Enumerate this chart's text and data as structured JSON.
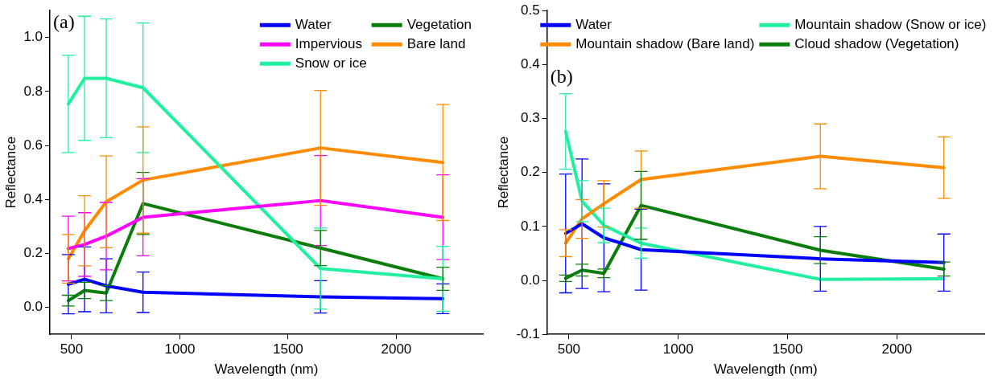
{
  "chart_data": [
    {
      "type": "line",
      "xlabel": "Wavelength (nm)",
      "ylabel": "Reflectance",
      "annotations": [
        "(a)"
      ],
      "xlim": [
        400,
        2400
      ],
      "xticks": [
        500,
        1000,
        1500,
        2000
      ],
      "ylim": [
        -0.1,
        1.1
      ],
      "yticks": [
        {
          "value": 0,
          "label": "0.0"
        },
        {
          "value": 0.2,
          "label": "0.2"
        },
        {
          "value": 0.4,
          "label": "0.4"
        },
        {
          "value": 0.6,
          "label": "0.6"
        },
        {
          "value": 0.8,
          "label": "0.8"
        },
        {
          "value": 1,
          "label": "1.0"
        }
      ],
      "grid": false,
      "legend": "top right",
      "line_style": "solid",
      "x": [
        485,
        560,
        660,
        830,
        1650,
        2215
      ],
      "series": [
        {
          "name": "Water",
          "color": "#0000ff",
          "values": [
            0.086,
            0.104,
            0.08,
            0.056,
            0.039,
            0.032
          ],
          "errors": [
            0.11,
            0.12,
            0.1,
            0.075,
            0.06,
            0.055
          ]
        },
        {
          "name": "Impervious",
          "color": "#ff00ff",
          "values": [
            0.218,
            0.233,
            0.264,
            0.334,
            0.396,
            0.334
          ],
          "errors": [
            0.12,
            0.118,
            0.125,
            0.143,
            0.167,
            0.157
          ]
        },
        {
          "name": "Snow or ice",
          "color": "#20f0a0",
          "values": [
            0.754,
            0.849,
            0.849,
            0.814,
            0.144,
            0.106
          ],
          "errors": [
            0.18,
            0.23,
            0.22,
            0.24,
            0.15,
            0.12
          ]
        },
        {
          "name": "Vegetation",
          "color": "#0a7d0a",
          "values": [
            0.025,
            0.063,
            0.053,
            0.385,
            0.22,
            0.106
          ],
          "errors": [
            0.02,
            0.03,
            0.028,
            0.115,
            0.065,
            0.043
          ]
        },
        {
          "name": "Bare land",
          "color": "#ff8c00",
          "values": [
            0.18,
            0.284,
            0.391,
            0.472,
            0.591,
            0.537
          ],
          "errors": [
            0.09,
            0.13,
            0.17,
            0.197,
            0.213,
            0.215
          ]
        }
      ]
    },
    {
      "type": "line",
      "xlabel": "Wavelength (nm)",
      "ylabel": "Reflectance",
      "annotations": [
        "(b)"
      ],
      "xlim": [
        400,
        2400
      ],
      "xticks": [
        500,
        1000,
        1500,
        2000
      ],
      "ylim": [
        -0.1,
        0.5
      ],
      "yticks": [
        {
          "value": -0.1,
          "label": "-0.1"
        },
        {
          "value": 0,
          "label": "0.0"
        },
        {
          "value": 0.1,
          "label": "0.1"
        },
        {
          "value": 0.2,
          "label": "0.2"
        },
        {
          "value": 0.3,
          "label": "0.3"
        },
        {
          "value": 0.4,
          "label": "0.4"
        },
        {
          "value": 0.5,
          "label": "0.5"
        }
      ],
      "grid": false,
      "legend": "top",
      "line_style": "solid",
      "x": [
        485,
        560,
        660,
        830,
        1650,
        2215
      ],
      "series": [
        {
          "name": "Water",
          "color": "#0000ff",
          "values": [
            0.087,
            0.105,
            0.079,
            0.057,
            0.04,
            0.033
          ],
          "errors": [
            0.11,
            0.12,
            0.1,
            0.075,
            0.06,
            0.053
          ]
        },
        {
          "name": "Mountain shadow (Bare land)",
          "color": "#ff8c00",
          "values": [
            0.069,
            0.114,
            0.142,
            0.187,
            0.23,
            0.209
          ],
          "errors": [
            0.025,
            0.036,
            0.043,
            0.053,
            0.06,
            0.057
          ]
        },
        {
          "name": "Mountain shadow (Snow or ice)",
          "color": "#20f0a0",
          "values": [
            0.276,
            0.147,
            0.102,
            0.069,
            0.002,
            0.003
          ],
          "errors": [
            0.07,
            0.038,
            0.032,
            0.028,
            null,
            null
          ]
        },
        {
          "name": "Cloud shadow (Vegetation)",
          "color": "#0a7d0a",
          "values": [
            0.004,
            0.019,
            0.013,
            0.139,
            0.056,
            0.021
          ],
          "errors": [
            0.006,
            0.011,
            0.008,
            0.063,
            0.025,
            0.013
          ]
        }
      ]
    }
  ]
}
